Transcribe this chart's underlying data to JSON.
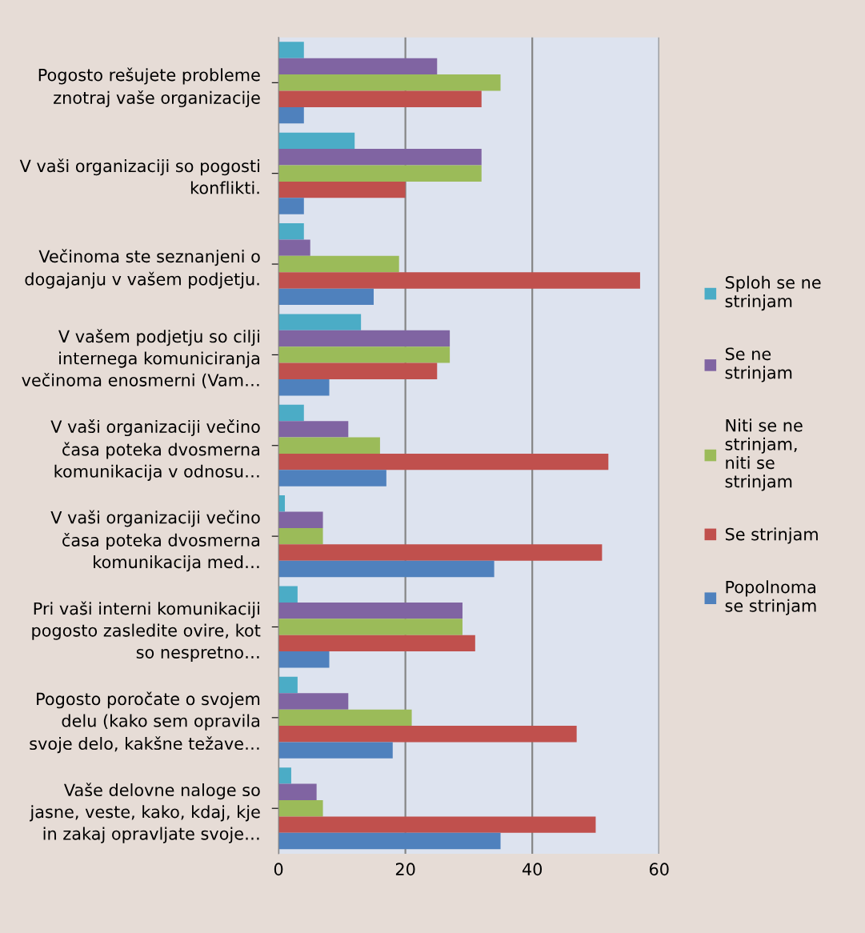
{
  "chart_data": {
    "type": "bar",
    "orientation": "horizontal",
    "categories": [
      "Pogosto rešujete probleme\nznotraj vaše organizacije",
      "V vaši organizaciji so pogosti\nkonflikti.",
      "Večinoma ste seznanjeni o\ndogajanju v vašem podjetju.",
      "V vašem podjetju so cilji\ninternega komuniciranja\nvečinoma enosmerni (Vam…",
      "V vaši organizaciji večino\nčasa poteka dvosmerna\nkomunikacija v odnosu…",
      "V vaši organizaciji večino\nčasa poteka dvosmerna\nkomunikacija med…",
      "Pri vaši interni komunikaciji\npogosto zasledite ovire, kot\nso nespretno…",
      "Pogosto poročate o svojem\ndelu (kako sem opravila\nsvoje delo, kakšne težave…",
      "Vaše delovne naloge so\njasne, veste, kako, kdaj, kje\nin zakaj opravljate svoje…"
    ],
    "series": [
      {
        "name": "Sploh se ne\nstrinjam",
        "color": "#4bacc6",
        "values": [
          4,
          12,
          4,
          13,
          4,
          1,
          3,
          3,
          2
        ]
      },
      {
        "name": "Se ne\nstrinjam",
        "color": "#8064a2",
        "values": [
          25,
          32,
          5,
          27,
          11,
          7,
          29,
          11,
          6
        ]
      },
      {
        "name": "Niti se ne\nstrinjam,\nniti se\nstrinjam",
        "color": "#9bbb59",
        "values": [
          35,
          32,
          19,
          27,
          16,
          7,
          29,
          21,
          7
        ]
      },
      {
        "name": "Se strinjam",
        "color": "#c0504d",
        "values": [
          32,
          20,
          57,
          25,
          52,
          51,
          31,
          47,
          50
        ]
      },
      {
        "name": "Popolnoma\nse strinjam",
        "color": "#4f81bd",
        "values": [
          4,
          4,
          15,
          8,
          17,
          34,
          8,
          18,
          35
        ]
      }
    ],
    "xlim": [
      0,
      60
    ],
    "xticks": [
      0,
      20,
      40,
      60
    ],
    "grid": "x",
    "legend": "right"
  }
}
